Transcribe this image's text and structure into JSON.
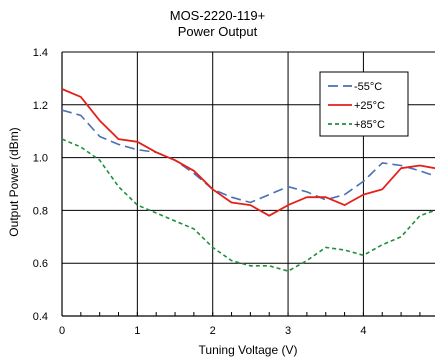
{
  "chart_data": {
    "type": "line",
    "title": "MOS-2220-119+",
    "subtitle": "Power Output",
    "xlabel": "Tuning Voltage (V)",
    "ylabel": "Output Power (dBm)",
    "xlim": [
      0,
      4.95
    ],
    "ylim": [
      0.4,
      1.4
    ],
    "xticks": [
      0,
      1,
      2,
      3,
      4
    ],
    "yticks": [
      0.4,
      0.6,
      0.8,
      1.0,
      1.2,
      1.4
    ],
    "xtick_labels": [
      "0",
      "1",
      "2",
      "3",
      "4"
    ],
    "ytick_labels": [
      "0.4",
      "0.6",
      "0.8",
      "1.0",
      "1.2",
      "1.4"
    ],
    "grid": true,
    "legend_position": "top-right",
    "series": [
      {
        "name": "-55°C",
        "color": "#4a6fb5",
        "style": "dashed",
        "x": [
          0,
          0.25,
          0.5,
          0.75,
          1.0,
          1.25,
          1.5,
          1.75,
          2.0,
          2.25,
          2.5,
          2.75,
          3.0,
          3.25,
          3.5,
          3.75,
          4.0,
          4.25,
          4.5,
          4.75,
          4.95
        ],
        "y": [
          1.18,
          1.16,
          1.08,
          1.05,
          1.03,
          1.02,
          0.99,
          0.94,
          0.88,
          0.85,
          0.83,
          0.86,
          0.89,
          0.87,
          0.84,
          0.86,
          0.91,
          0.98,
          0.97,
          0.95,
          0.93
        ]
      },
      {
        "name": "+25°C",
        "color": "#e32119",
        "style": "solid",
        "x": [
          0,
          0.25,
          0.5,
          0.75,
          1.0,
          1.25,
          1.5,
          1.75,
          2.0,
          2.25,
          2.5,
          2.75,
          3.0,
          3.25,
          3.5,
          3.75,
          4.0,
          4.25,
          4.5,
          4.75,
          4.95
        ],
        "y": [
          1.26,
          1.23,
          1.14,
          1.07,
          1.06,
          1.02,
          0.99,
          0.95,
          0.88,
          0.83,
          0.82,
          0.78,
          0.82,
          0.85,
          0.85,
          0.82,
          0.86,
          0.88,
          0.96,
          0.97,
          0.96
        ]
      },
      {
        "name": "+85°C",
        "color": "#1f8f3f",
        "style": "dotted",
        "x": [
          0,
          0.25,
          0.5,
          0.75,
          1.0,
          1.25,
          1.5,
          1.75,
          2.0,
          2.25,
          2.5,
          2.75,
          3.0,
          3.25,
          3.5,
          3.75,
          4.0,
          4.25,
          4.5,
          4.75,
          4.95
        ],
        "y": [
          1.07,
          1.04,
          0.99,
          0.89,
          0.82,
          0.79,
          0.76,
          0.73,
          0.66,
          0.61,
          0.59,
          0.59,
          0.57,
          0.61,
          0.66,
          0.65,
          0.63,
          0.67,
          0.7,
          0.78,
          0.8
        ]
      }
    ]
  }
}
